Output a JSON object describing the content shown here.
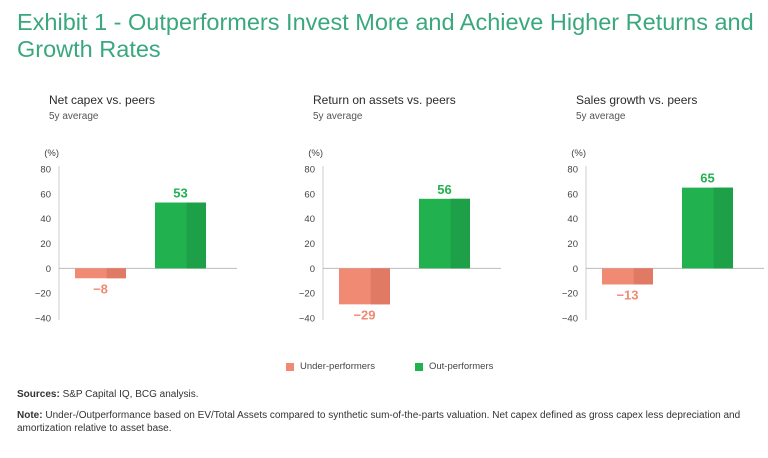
{
  "title": "Exhibit 1 - Outperformers Invest More and Achieve Higher Returns and Growth Rates",
  "colors": {
    "title": "#3aa87f",
    "under": "#f08a72",
    "under_shade": "#e07a65",
    "out": "#21b24f",
    "out_shade": "#1da047",
    "axis": "#cccccc"
  },
  "legend": {
    "under_label": "Under-performers",
    "out_label": "Out-performers"
  },
  "footer": {
    "sources_label": "Sources:",
    "sources_text": "S&P Capital IQ, BCG analysis.",
    "note_label": "Note:",
    "note_text": "Under-/Outperformance based on EV/Total Assets compared to synthetic sum-of-the-parts valuation. Net capex defined as gross capex less depreciation and amortization relative to asset base."
  },
  "chart_data": [
    {
      "type": "bar",
      "title": "Net capex vs. peers",
      "subtitle": "5y average",
      "unit": "(%)",
      "categories": [
        "Under-performers",
        "Out-performers"
      ],
      "values": [
        -8,
        53
      ],
      "value_labels": [
        "−8",
        "53"
      ],
      "ylim": [
        -40,
        80
      ],
      "yticks": [
        80,
        60,
        40,
        20,
        0,
        -20,
        -40
      ],
      "ytick_labels": [
        "80",
        "60",
        "40",
        "20",
        "0",
        "−20",
        "−40"
      ]
    },
    {
      "type": "bar",
      "title": "Return on assets vs. peers",
      "subtitle": "5y average",
      "unit": "(%)",
      "categories": [
        "Under-performers",
        "Out-performers"
      ],
      "values": [
        -29,
        56
      ],
      "value_labels": [
        "−29",
        "56"
      ],
      "ylim": [
        -40,
        80
      ],
      "yticks": [
        80,
        60,
        40,
        20,
        0,
        -20,
        -40
      ],
      "ytick_labels": [
        "80",
        "60",
        "40",
        "20",
        "0",
        "−20",
        "−40"
      ]
    },
    {
      "type": "bar",
      "title": "Sales growth vs. peers",
      "subtitle": "5y average",
      "unit": "(%)",
      "categories": [
        "Under-performers",
        "Out-performers"
      ],
      "values": [
        -13,
        65
      ],
      "value_labels": [
        "−13",
        "65"
      ],
      "ylim": [
        -40,
        80
      ],
      "yticks": [
        80,
        60,
        40,
        20,
        0,
        -20,
        -40
      ],
      "ytick_labels": [
        "80",
        "60",
        "40",
        "20",
        "0",
        "−20",
        "−40"
      ]
    }
  ]
}
